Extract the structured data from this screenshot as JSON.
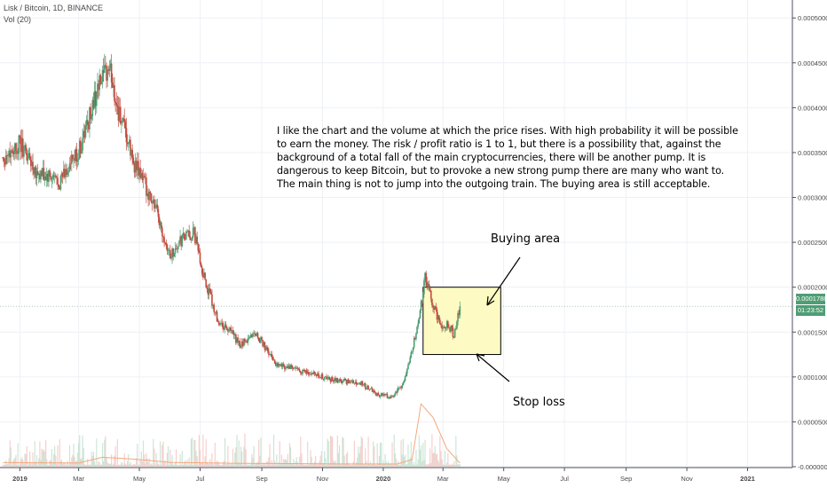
{
  "header": {
    "symbol_line": "Lisk / Bitcoin, 1D, BINANCE",
    "indicator_line": "Vol (20)"
  },
  "annotations": {
    "note": "I like the chart and the volume at which the price rises. With high probability it will be possible\nto earn the money. The risk / profit ratio is 1 to 1, but there is a possibility that, against the\nbackground of a total fall of the main cryptocurrencies, there will be another pump. It is\ndangerous to keep Bitcoin, but to provoke a new strong pump there are many who want to.\nThe main thing is not to jump into the outgoing train. The buying area is still acceptable.",
    "buying_area": "Buying area",
    "stop_loss": "Stop loss"
  },
  "price_tags": {
    "last_price": "0.0001788",
    "countdown": "01:23:52"
  },
  "colors": {
    "up": "#4f9d74",
    "down": "#c24a3f",
    "volume_ma": "#f4a77c",
    "buy_zone_fill": "#fdfbc3",
    "grid": "#eef1f5"
  },
  "chart_data": {
    "type": "candlestick",
    "ylim": [
      -1e-06,
      0.00052
    ],
    "y_ticks": [
      "0.0005000",
      "0.0004500",
      "0.0004000",
      "0.0003500",
      "0.0003000",
      "0.0002500",
      "0.0002000",
      "0.0001500",
      "0.0001000",
      "0.0000500",
      "-0.0000000"
    ],
    "x_ticks": [
      "2019",
      "Mar",
      "May",
      "Jul",
      "Sep",
      "Nov",
      "2020",
      "Mar",
      "May",
      "Jul",
      "Sep",
      "Nov",
      "2021"
    ],
    "price_path": [
      {
        "date": "2018-12-15",
        "close": 0.000345
      },
      {
        "date": "2019-01-01",
        "close": 0.00036
      },
      {
        "date": "2019-01-20",
        "close": 0.000325
      },
      {
        "date": "2019-02-10",
        "close": 0.000318
      },
      {
        "date": "2019-03-01",
        "close": 0.00035
      },
      {
        "date": "2019-03-20",
        "close": 0.00042
      },
      {
        "date": "2019-04-01",
        "close": 0.000445
      },
      {
        "date": "2019-04-10",
        "close": 0.000395
      },
      {
        "date": "2019-04-25",
        "close": 0.00034
      },
      {
        "date": "2019-05-15",
        "close": 0.000295
      },
      {
        "date": "2019-06-01",
        "close": 0.000235
      },
      {
        "date": "2019-06-15",
        "close": 0.000255
      },
      {
        "date": "2019-06-25",
        "close": 0.00026
      },
      {
        "date": "2019-07-05",
        "close": 0.00021
      },
      {
        "date": "2019-07-20",
        "close": 0.00016
      },
      {
        "date": "2019-08-01",
        "close": 0.00015
      },
      {
        "date": "2019-08-10",
        "close": 0.000135
      },
      {
        "date": "2019-08-25",
        "close": 0.00015
      },
      {
        "date": "2019-09-15",
        "close": 0.000115
      },
      {
        "date": "2019-10-15",
        "close": 0.000105
      },
      {
        "date": "2019-11-10",
        "close": 9.7e-05
      },
      {
        "date": "2019-12-10",
        "close": 9.3e-05
      },
      {
        "date": "2019-12-25",
        "close": 8.1e-05
      },
      {
        "date": "2020-01-10",
        "close": 7.8e-05
      },
      {
        "date": "2020-01-20",
        "close": 9e-05
      },
      {
        "date": "2020-01-30",
        "close": 0.00013
      },
      {
        "date": "2020-02-05",
        "close": 0.00016
      },
      {
        "date": "2020-02-12",
        "close": 0.00021
      },
      {
        "date": "2020-02-20",
        "close": 0.00018
      },
      {
        "date": "2020-02-28",
        "close": 0.000155
      },
      {
        "date": "2020-03-05",
        "close": 0.00016
      },
      {
        "date": "2020-03-12",
        "close": 0.000147
      },
      {
        "date": "2020-03-18",
        "close": 0.0001788
      }
    ],
    "volume_ma_path": [
      {
        "date": "2018-12-15",
        "value": 4.5e-06
      },
      {
        "date": "2019-03-01",
        "value": 4e-06
      },
      {
        "date": "2019-03-25",
        "value": 1.05e-05
      },
      {
        "date": "2019-04-25",
        "value": 8.5e-06
      },
      {
        "date": "2019-06-01",
        "value": 4.8e-06
      },
      {
        "date": "2019-08-01",
        "value": 3.8e-06
      },
      {
        "date": "2019-11-01",
        "value": 3.2e-06
      },
      {
        "date": "2020-01-15",
        "value": 3e-06
      },
      {
        "date": "2020-01-30",
        "value": 8e-06
      },
      {
        "date": "2020-02-08",
        "value": 7e-05
      },
      {
        "date": "2020-02-20",
        "value": 5.5e-05
      },
      {
        "date": "2020-03-05",
        "value": 2e-05
      },
      {
        "date": "2020-03-18",
        "value": 4e-06
      }
    ],
    "buying_area_zone": {
      "from": "2020-02-10",
      "to": "2020-04-28",
      "low": 0.000125,
      "high": 0.0002
    },
    "last_price": 0.0001788
  }
}
